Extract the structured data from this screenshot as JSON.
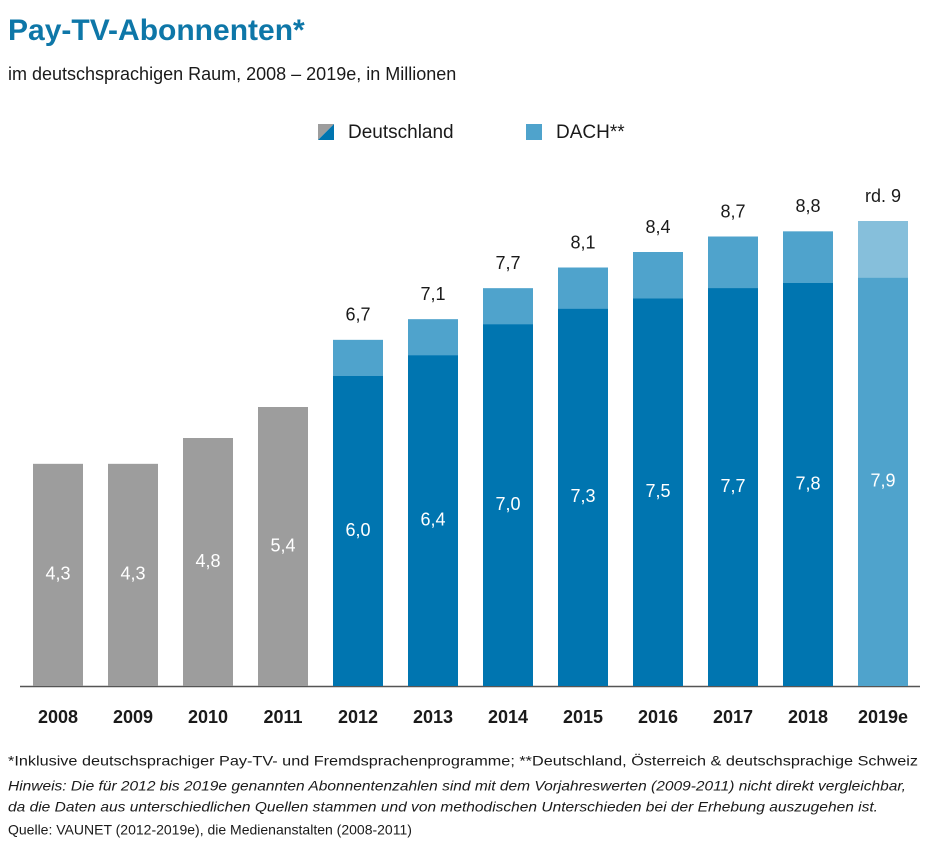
{
  "chart_data": {
    "type": "bar",
    "title": "Pay-TV-Abonnenten*",
    "subtitle": "im deutschsprachigen Raum, 2008 – 2019e, in Millionen",
    "categories": [
      "2008",
      "2009",
      "2010",
      "2011",
      "2012",
      "2013",
      "2014",
      "2015",
      "2016",
      "2017",
      "2018",
      "2019e"
    ],
    "ylim": [
      0,
      9
    ],
    "series": [
      {
        "name": "Deutschland",
        "colors": [
          "#9d9d9d",
          "#9d9d9d",
          "#9d9d9d",
          "#9d9d9d",
          "#0075b0",
          "#0075b0",
          "#0075b0",
          "#0075b0",
          "#0075b0",
          "#0075b0",
          "#0075b0",
          "#4fa3cc"
        ],
        "values": [
          4.3,
          4.3,
          4.8,
          5.4,
          6.0,
          6.4,
          7.0,
          7.3,
          7.5,
          7.7,
          7.8,
          7.9
        ],
        "value_labels": [
          "4,3",
          "4,3",
          "4,8",
          "5,4",
          "6,0",
          "6,4",
          "7,0",
          "7,3",
          "7,5",
          "7,7",
          "7,8",
          "7,9"
        ]
      },
      {
        "name": "DACH**",
        "color": "#4fa3cc",
        "colors": [
          null,
          null,
          null,
          null,
          "#4fa3cc",
          "#4fa3cc",
          "#4fa3cc",
          "#4fa3cc",
          "#4fa3cc",
          "#4fa3cc",
          "#4fa3cc",
          "#86bfdb"
        ],
        "values": [
          null,
          null,
          null,
          null,
          6.7,
          7.1,
          7.7,
          8.1,
          8.4,
          8.7,
          8.8,
          9
        ],
        "value_labels": [
          null,
          null,
          null,
          null,
          "6,7",
          "7,1",
          "7,7",
          "8,1",
          "8,4",
          "8,7",
          "8,8",
          "rd. 9"
        ]
      }
    ],
    "footnotes": [
      "*Inklusive deutschsprachiger Pay-TV- und Fremdsprachenprogramme; **Deutschland, Österreich & deutschsprachige Schweiz",
      "Hinweis: Die für 2012 bis 2019e genannten Abonnentenzahlen sind mit dem Vorjahreswerten (2009-2011) nicht direkt vergleichbar,",
      "da die Daten aus unterschiedlichen Quellen stammen und von methodischen Unterschieden bei der Erhebung auszugehen ist.",
      "Quelle: VAUNET (2012-2019e), die Medienanstalten (2008-2011)"
    ]
  }
}
